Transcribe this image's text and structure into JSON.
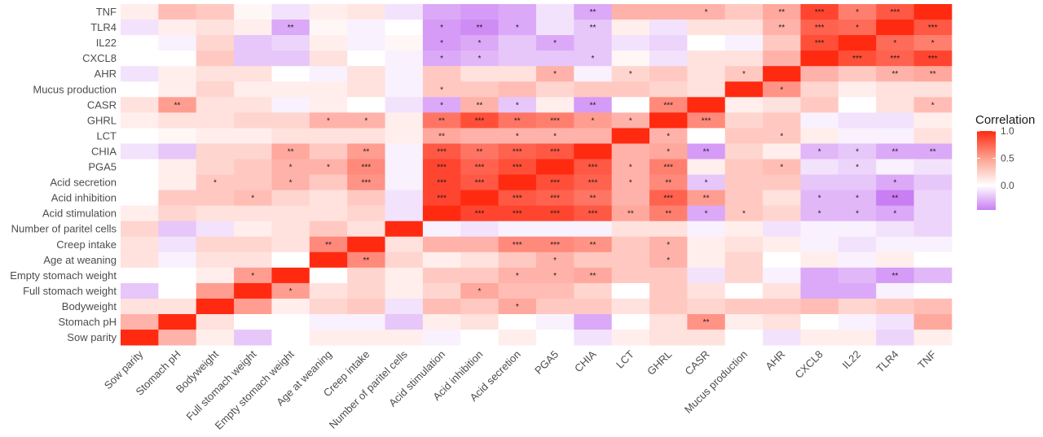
{
  "chart_data": {
    "type": "heatmap",
    "title": "",
    "xlabel": "",
    "ylabel": "",
    "legend": {
      "title": "Correlation",
      "ticks": [
        "1.0",
        "0.5",
        "0.0"
      ],
      "tick_values": [
        1.0,
        0.5,
        0.0
      ],
      "range": [
        -0.45,
        1.0
      ],
      "placement": "right"
    },
    "variables": [
      "Sow parity",
      "Stomach pH",
      "Bodyweight",
      "Full stomach weight",
      "Empty stomach weight",
      "Age at weaning",
      "Creep intake",
      "Number of paritel cells",
      "Acid stimulation",
      "Acid inhibition",
      "Acid secretion",
      "PGA5",
      "CHIA",
      "LCT",
      "GHRL",
      "CASR",
      "Mucus production",
      "AHR",
      "CXCL8",
      "IL22",
      "TLR4",
      "TNF"
    ],
    "rows": [
      {
        "label": "TNF",
        "values": [
          0.05,
          0.25,
          0.2,
          0.02,
          -0.1,
          0.05,
          0.08,
          -0.1,
          -0.3,
          -0.35,
          -0.3,
          -0.1,
          -0.3,
          0.3,
          0.3,
          0.3,
          0.2,
          0.35,
          0.85,
          0.55,
          0.75,
          1.0
        ],
        "stars": [
          "",
          "",
          "",
          "",
          "",
          "",
          "",
          "",
          "",
          "",
          "",
          "",
          "**",
          "",
          "",
          "*",
          "",
          "**",
          "***",
          "*",
          "***",
          ""
        ]
      },
      {
        "label": "TLR4",
        "values": [
          -0.1,
          0.05,
          0.1,
          0.05,
          -0.3,
          0.02,
          -0.05,
          0.0,
          -0.35,
          -0.4,
          -0.3,
          -0.1,
          -0.2,
          0.05,
          -0.1,
          0.1,
          0.1,
          0.3,
          0.7,
          0.65,
          1.0,
          0.75
        ],
        "stars": [
          "",
          "",
          "",
          "",
          "**",
          "",
          "",
          "",
          "*",
          "**",
          "*",
          "",
          "**",
          "",
          "",
          "",
          "",
          "**",
          "***",
          "*",
          "",
          "***"
        ]
      },
      {
        "label": "IL22",
        "values": [
          0.0,
          -0.05,
          0.15,
          -0.2,
          -0.15,
          0.05,
          -0.05,
          0.02,
          -0.35,
          -0.3,
          -0.2,
          -0.3,
          -0.2,
          -0.1,
          -0.15,
          0.0,
          -0.05,
          0.2,
          0.8,
          1.0,
          0.65,
          0.55
        ]
      },
      {
        "label": "CXCL8",
        "values": [
          0.0,
          0.0,
          0.2,
          -0.2,
          -0.2,
          0.1,
          0.0,
          -0.05,
          -0.3,
          -0.25,
          -0.2,
          -0.2,
          -0.2,
          0.02,
          -0.1,
          0.1,
          0.1,
          0.3,
          1.0,
          0.8,
          0.7,
          0.85
        ]
      },
      {
        "label": "AHR",
        "values": [
          -0.1,
          0.05,
          0.1,
          0.1,
          0.0,
          -0.05,
          0.1,
          -0.05,
          0.2,
          0.1,
          0.1,
          0.3,
          -0.05,
          0.15,
          0.2,
          0.1,
          0.2,
          1.0,
          0.3,
          0.2,
          0.3,
          0.35
        ]
      },
      {
        "label": "Mucus production",
        "values": [
          0.0,
          0.05,
          0.15,
          0.05,
          0.05,
          0.05,
          0.1,
          -0.05,
          0.2,
          0.2,
          0.25,
          0.15,
          0.2,
          0.2,
          0.15,
          0.1,
          1.0,
          0.45,
          0.15,
          0.05,
          0.1,
          0.1
        ]
      },
      {
        "label": "CASR",
        "values": [
          0.1,
          0.4,
          0.1,
          0.1,
          -0.05,
          0.05,
          0.0,
          -0.1,
          -0.3,
          0.3,
          -0.2,
          0.05,
          -0.35,
          0.0,
          0.5,
          1.0,
          0.05,
          0.1,
          0.2,
          0.0,
          0.1,
          0.25
        ]
      },
      {
        "label": "GHRL",
        "values": [
          0.05,
          0.1,
          0.1,
          0.15,
          0.15,
          0.3,
          0.3,
          0.05,
          0.6,
          0.8,
          0.6,
          0.55,
          0.4,
          0.3,
          1.0,
          0.5,
          0.15,
          0.2,
          -0.05,
          -0.1,
          -0.1,
          0.05
        ]
      },
      {
        "label": "LCT",
        "values": [
          0.0,
          0.02,
          0.05,
          0.05,
          0.1,
          0.1,
          0.1,
          0.05,
          0.35,
          0.3,
          0.3,
          0.3,
          0.3,
          1.0,
          0.3,
          0.0,
          0.2,
          0.2,
          0.05,
          -0.05,
          -0.05,
          0.1
        ]
      },
      {
        "label": "CHIA",
        "values": [
          -0.1,
          -0.2,
          0.15,
          0.15,
          0.35,
          0.2,
          0.4,
          -0.05,
          0.75,
          0.6,
          0.7,
          0.75,
          1.0,
          0.3,
          0.35,
          -0.35,
          0.15,
          0.05,
          -0.25,
          -0.2,
          -0.3,
          -0.3
        ]
      },
      {
        "label": "PGA5",
        "values": [
          0.0,
          0.05,
          0.15,
          0.2,
          0.3,
          0.3,
          0.5,
          -0.05,
          0.85,
          0.7,
          0.8,
          1.0,
          0.75,
          0.3,
          0.55,
          0.05,
          0.2,
          0.25,
          -0.1,
          -0.15,
          -0.05,
          -0.1
        ]
      },
      {
        "label": "Acid secretion",
        "values": [
          0.0,
          0.05,
          0.2,
          0.2,
          0.3,
          0.2,
          0.45,
          -0.05,
          0.85,
          0.75,
          1.0,
          0.8,
          0.7,
          0.3,
          0.5,
          -0.2,
          0.2,
          0.2,
          -0.2,
          -0.2,
          -0.3,
          -0.2
        ]
      },
      {
        "label": "Acid inhibition",
        "values": [
          0.0,
          0.2,
          0.2,
          0.25,
          0.15,
          0.1,
          0.2,
          -0.1,
          0.85,
          1.0,
          0.75,
          0.7,
          0.6,
          0.3,
          0.7,
          0.4,
          0.2,
          0.1,
          -0.25,
          -0.25,
          -0.45,
          -0.15
        ]
      },
      {
        "label": "Acid stimulation",
        "values": [
          0.05,
          0.15,
          0.1,
          0.1,
          0.1,
          0.1,
          0.15,
          -0.1,
          1.0,
          0.85,
          0.85,
          0.85,
          0.75,
          0.35,
          0.55,
          -0.3,
          0.2,
          0.15,
          -0.25,
          -0.25,
          -0.3,
          -0.15
        ]
      },
      {
        "label": "Number of paritel cells",
        "values": [
          0.15,
          -0.2,
          -0.1,
          0.05,
          0.1,
          0.2,
          0.1,
          1.0,
          -0.05,
          -0.1,
          -0.05,
          -0.05,
          -0.05,
          0.1,
          0.1,
          -0.05,
          0.05,
          -0.1,
          -0.05,
          -0.05,
          -0.1,
          -0.15
        ]
      },
      {
        "label": "Creep intake",
        "values": [
          0.1,
          -0.1,
          0.15,
          0.15,
          0.1,
          0.5,
          1.0,
          0.1,
          0.3,
          0.3,
          0.5,
          0.5,
          0.45,
          0.2,
          0.3,
          0.05,
          0.1,
          0.05,
          -0.05,
          -0.1,
          -0.05,
          -0.05
        ]
      },
      {
        "label": "Age at weaning",
        "values": [
          0.1,
          -0.05,
          0.1,
          0.1,
          0.0,
          1.0,
          0.5,
          0.15,
          0.05,
          0.1,
          0.2,
          0.3,
          0.2,
          0.2,
          0.3,
          0.05,
          0.15,
          0.0,
          0.05,
          -0.05,
          0.05,
          0.0
        ]
      },
      {
        "label": "Empty stomach weight",
        "values": [
          0.0,
          0.0,
          0.05,
          0.4,
          1.0,
          0.0,
          0.15,
          0.05,
          0.2,
          0.2,
          0.3,
          0.3,
          0.35,
          0.2,
          0.2,
          -0.1,
          0.15,
          -0.05,
          -0.3,
          -0.25,
          -0.35,
          -0.25
        ]
      },
      {
        "label": "Full stomach weight",
        "values": [
          -0.2,
          0.0,
          0.4,
          1.0,
          0.4,
          0.1,
          0.15,
          0.05,
          0.15,
          0.35,
          0.25,
          0.25,
          0.15,
          0.0,
          0.2,
          0.1,
          0.0,
          0.1,
          -0.3,
          -0.3,
          -0.05,
          0.0
        ]
      },
      {
        "label": "Bodyweight",
        "values": [
          0.1,
          0.1,
          1.0,
          0.4,
          0.05,
          0.15,
          0.2,
          -0.1,
          0.25,
          0.2,
          0.35,
          0.2,
          0.2,
          0.1,
          0.2,
          0.15,
          0.2,
          0.2,
          0.25,
          0.15,
          0.2,
          0.25
        ]
      },
      {
        "label": "Stomach pH",
        "values": [
          0.3,
          1.0,
          0.1,
          0.0,
          0.0,
          -0.05,
          -0.05,
          -0.2,
          0.05,
          0.1,
          0.0,
          -0.05,
          -0.3,
          0.0,
          0.1,
          0.45,
          0.05,
          0.1,
          0.0,
          -0.05,
          -0.1,
          0.35
        ]
      },
      {
        "label": "Sow parity",
        "values": [
          1.0,
          0.3,
          0.05,
          -0.2,
          0.0,
          0.05,
          0.05,
          0.05,
          -0.05,
          0.0,
          0.05,
          0.0,
          -0.1,
          0.05,
          0.1,
          0.1,
          0.0,
          -0.1,
          0.05,
          0.05,
          -0.15,
          0.05
        ]
      }
    ],
    "star_cells": [
      [
        "TNF",
        "CHIA",
        "**"
      ],
      [
        "TNF",
        "CASR",
        "*"
      ],
      [
        "TNF",
        "AHR",
        "**"
      ],
      [
        "TNF",
        "CXCL8",
        "***"
      ],
      [
        "TNF",
        "IL22",
        "*"
      ],
      [
        "TNF",
        "TLR4",
        "***"
      ],
      [
        "TLR4",
        "Empty stomach weight",
        "**"
      ],
      [
        "TLR4",
        "Acid stimulation",
        "*"
      ],
      [
        "TLR4",
        "Acid inhibition",
        "**"
      ],
      [
        "TLR4",
        "Acid secretion",
        "*"
      ],
      [
        "TLR4",
        "CHIA",
        "**"
      ],
      [
        "TLR4",
        "AHR",
        "**"
      ],
      [
        "TLR4",
        "CXCL8",
        "***"
      ],
      [
        "TLR4",
        "IL22",
        "*"
      ],
      [
        "TLR4",
        "TNF",
        "***"
      ],
      [
        "IL22",
        "Acid stimulation",
        "*"
      ],
      [
        "IL22",
        "Acid inhibition",
        "*"
      ],
      [
        "IL22",
        "PGA5",
        "*"
      ],
      [
        "IL22",
        "CXCL8",
        "***"
      ],
      [
        "IL22",
        "TLR4",
        "*"
      ],
      [
        "IL22",
        "TNF",
        "*"
      ],
      [
        "CXCL8",
        "Acid stimulation",
        "*"
      ],
      [
        "CXCL8",
        "Acid inhibition",
        "*"
      ],
      [
        "CXCL8",
        "CHIA",
        "*"
      ],
      [
        "CXCL8",
        "IL22",
        "***"
      ],
      [
        "CXCL8",
        "TLR4",
        "***"
      ],
      [
        "CXCL8",
        "TNF",
        "***"
      ],
      [
        "AHR",
        "PGA5",
        "*"
      ],
      [
        "AHR",
        "LCT",
        "*"
      ],
      [
        "AHR",
        "Mucus production",
        "*"
      ],
      [
        "AHR",
        "TLR4",
        "**"
      ],
      [
        "AHR",
        "TNF",
        "**"
      ],
      [
        "Mucus production",
        "Acid stimulation",
        "*"
      ],
      [
        "Mucus production",
        "AHR",
        "*"
      ],
      [
        "CASR",
        "Stomach pH",
        "**"
      ],
      [
        "CASR",
        "Acid stimulation",
        "*"
      ],
      [
        "CASR",
        "Acid inhibition",
        "**"
      ],
      [
        "CASR",
        "Acid secretion",
        "*"
      ],
      [
        "CASR",
        "CHIA",
        "**"
      ],
      [
        "CASR",
        "GHRL",
        "***"
      ],
      [
        "CASR",
        "TNF",
        "*"
      ],
      [
        "GHRL",
        "Age at weaning",
        "*"
      ],
      [
        "GHRL",
        "Creep intake",
        "*"
      ],
      [
        "GHRL",
        "Acid stimulation",
        "**"
      ],
      [
        "GHRL",
        "Acid inhibition",
        "***"
      ],
      [
        "GHRL",
        "Acid secretion",
        "**"
      ],
      [
        "GHRL",
        "PGA5",
        "***"
      ],
      [
        "GHRL",
        "CHIA",
        "*"
      ],
      [
        "GHRL",
        "LCT",
        "*"
      ],
      [
        "GHRL",
        "CASR",
        "***"
      ],
      [
        "LCT",
        "Acid stimulation",
        "**"
      ],
      [
        "LCT",
        "Acid secretion",
        "*"
      ],
      [
        "LCT",
        "PGA5",
        "*"
      ],
      [
        "LCT",
        "GHRL",
        "*"
      ],
      [
        "LCT",
        "AHR",
        "*"
      ],
      [
        "CHIA",
        "Empty stomach weight",
        "**"
      ],
      [
        "CHIA",
        "Creep intake",
        "**"
      ],
      [
        "CHIA",
        "Acid stimulation",
        "***"
      ],
      [
        "CHIA",
        "Acid inhibition",
        "**"
      ],
      [
        "CHIA",
        "Acid secretion",
        "***"
      ],
      [
        "CHIA",
        "PGA5",
        "***"
      ],
      [
        "CHIA",
        "GHRL",
        "*"
      ],
      [
        "CHIA",
        "CASR",
        "**"
      ],
      [
        "CHIA",
        "CXCL8",
        "*"
      ],
      [
        "CHIA",
        "IL22",
        "*"
      ],
      [
        "CHIA",
        "TLR4",
        "**"
      ],
      [
        "CHIA",
        "TNF",
        "**"
      ],
      [
        "PGA5",
        "Empty stomach weight",
        "*"
      ],
      [
        "PGA5",
        "Age at weaning",
        "*"
      ],
      [
        "PGA5",
        "Creep intake",
        "***"
      ],
      [
        "PGA5",
        "Acid stimulation",
        "***"
      ],
      [
        "PGA5",
        "Acid inhibition",
        "***"
      ],
      [
        "PGA5",
        "Acid secretion",
        "***"
      ],
      [
        "PGA5",
        "CHIA",
        "***"
      ],
      [
        "PGA5",
        "LCT",
        "*"
      ],
      [
        "PGA5",
        "GHRL",
        "***"
      ],
      [
        "PGA5",
        "AHR",
        "*"
      ],
      [
        "PGA5",
        "IL22",
        "*"
      ],
      [
        "Acid secretion",
        "Bodyweight",
        "*"
      ],
      [
        "Acid secretion",
        "Empty stomach weight",
        "*"
      ],
      [
        "Acid secretion",
        "Creep intake",
        "***"
      ],
      [
        "Acid secretion",
        "Acid stimulation",
        "***"
      ],
      [
        "Acid secretion",
        "Acid inhibition",
        "***"
      ],
      [
        "Acid secretion",
        "PGA5",
        "***"
      ],
      [
        "Acid secretion",
        "CHIA",
        "***"
      ],
      [
        "Acid secretion",
        "LCT",
        "*"
      ],
      [
        "Acid secretion",
        "GHRL",
        "**"
      ],
      [
        "Acid secretion",
        "CASR",
        "*"
      ],
      [
        "Acid secretion",
        "TLR4",
        "*"
      ],
      [
        "Acid inhibition",
        "Full stomach weight",
        "*"
      ],
      [
        "Acid inhibition",
        "Acid stimulation",
        "***"
      ],
      [
        "Acid inhibition",
        "Acid secretion",
        "***"
      ],
      [
        "Acid inhibition",
        "PGA5",
        "***"
      ],
      [
        "Acid inhibition",
        "CHIA",
        "**"
      ],
      [
        "Acid inhibition",
        "GHRL",
        "***"
      ],
      [
        "Acid inhibition",
        "CASR",
        "**"
      ],
      [
        "Acid inhibition",
        "CXCL8",
        "*"
      ],
      [
        "Acid inhibition",
        "IL22",
        "*"
      ],
      [
        "Acid inhibition",
        "TLR4",
        "**"
      ],
      [
        "Acid stimulation",
        "Acid inhibition",
        "***"
      ],
      [
        "Acid stimulation",
        "Acid secretion",
        "***"
      ],
      [
        "Acid stimulation",
        "PGA5",
        "***"
      ],
      [
        "Acid stimulation",
        "CHIA",
        "***"
      ],
      [
        "Acid stimulation",
        "LCT",
        "**"
      ],
      [
        "Acid stimulation",
        "GHRL",
        "**"
      ],
      [
        "Acid stimulation",
        "CASR",
        "*"
      ],
      [
        "Acid stimulation",
        "Mucus production",
        "*"
      ],
      [
        "Acid stimulation",
        "CXCL8",
        "*"
      ],
      [
        "Acid stimulation",
        "IL22",
        "*"
      ],
      [
        "Acid stimulation",
        "TLR4",
        "*"
      ],
      [
        "Creep intake",
        "Age at weaning",
        "**"
      ],
      [
        "Creep intake",
        "Acid secretion",
        "***"
      ],
      [
        "Creep intake",
        "PGA5",
        "***"
      ],
      [
        "Creep intake",
        "CHIA",
        "**"
      ],
      [
        "Creep intake",
        "GHRL",
        "*"
      ],
      [
        "Age at weaning",
        "Creep intake",
        "**"
      ],
      [
        "Age at weaning",
        "PGA5",
        "*"
      ],
      [
        "Age at weaning",
        "GHRL",
        "*"
      ],
      [
        "Empty stomach weight",
        "Full stomach weight",
        "*"
      ],
      [
        "Empty stomach weight",
        "Acid secretion",
        "*"
      ],
      [
        "Empty stomach weight",
        "PGA5",
        "*"
      ],
      [
        "Empty stomach weight",
        "CHIA",
        "**"
      ],
      [
        "Empty stomach weight",
        "TLR4",
        "**"
      ],
      [
        "Full stomach weight",
        "Empty stomach weight",
        "*"
      ],
      [
        "Full stomach weight",
        "Acid inhibition",
        "*"
      ],
      [
        "Bodyweight",
        "Acid secretion",
        "*"
      ],
      [
        "Stomach pH",
        "CASR",
        "**"
      ],
      [
        "Sow parity",
        "",
        ""
      ]
    ],
    "ambiguous_note": ""
  }
}
